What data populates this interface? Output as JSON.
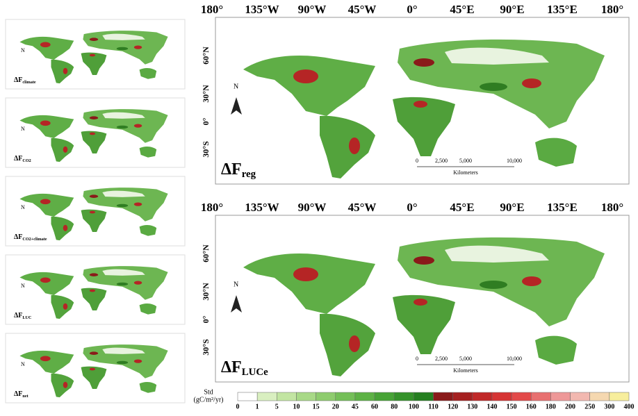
{
  "small_panels": [
    {
      "main": "ΔF",
      "sub": "climate"
    },
    {
      "main": "ΔF",
      "sub": "CO2"
    },
    {
      "main": "ΔF",
      "sub": "CO2+climate"
    },
    {
      "main": "ΔF",
      "sub": "LUC"
    },
    {
      "main": "ΔF",
      "sub": "net"
    }
  ],
  "main_panels": [
    {
      "main": "ΔF",
      "sub": "reg"
    },
    {
      "main": "ΔF",
      "sub": "LUCe"
    }
  ],
  "longitude_labels": [
    "180°",
    "135°W",
    "90°W",
    "45°W",
    "0°",
    "45°E",
    "90°E",
    "135°E",
    "180°"
  ],
  "latitude_labels": [
    "60°N",
    "30°N",
    "0°",
    "30°S"
  ],
  "north": "N",
  "scale_bar": {
    "labels": [
      "0",
      "2,500",
      "5,000",
      "10,000"
    ],
    "unit": "Kilometers"
  },
  "legend": {
    "title": [
      "Std",
      "(gC/m²/yr)"
    ],
    "ticks": [
      0,
      1,
      5,
      10,
      15,
      20,
      45,
      60,
      80,
      100,
      110,
      120,
      130,
      140,
      150,
      160,
      180,
      200,
      250,
      300,
      400
    ],
    "colors": [
      "#ffffff",
      "#d9efc0",
      "#c2e5a2",
      "#a8d987",
      "#8ecc6e",
      "#74bf58",
      "#5db245",
      "#47a336",
      "#35922a",
      "#257f20",
      "#8a1a1a",
      "#a52020",
      "#c02828",
      "#d63434",
      "#e34a4a",
      "#e87070",
      "#ee9898",
      "#f2b8b0",
      "#f5d8b0",
      "#f7ee9c"
    ]
  }
}
